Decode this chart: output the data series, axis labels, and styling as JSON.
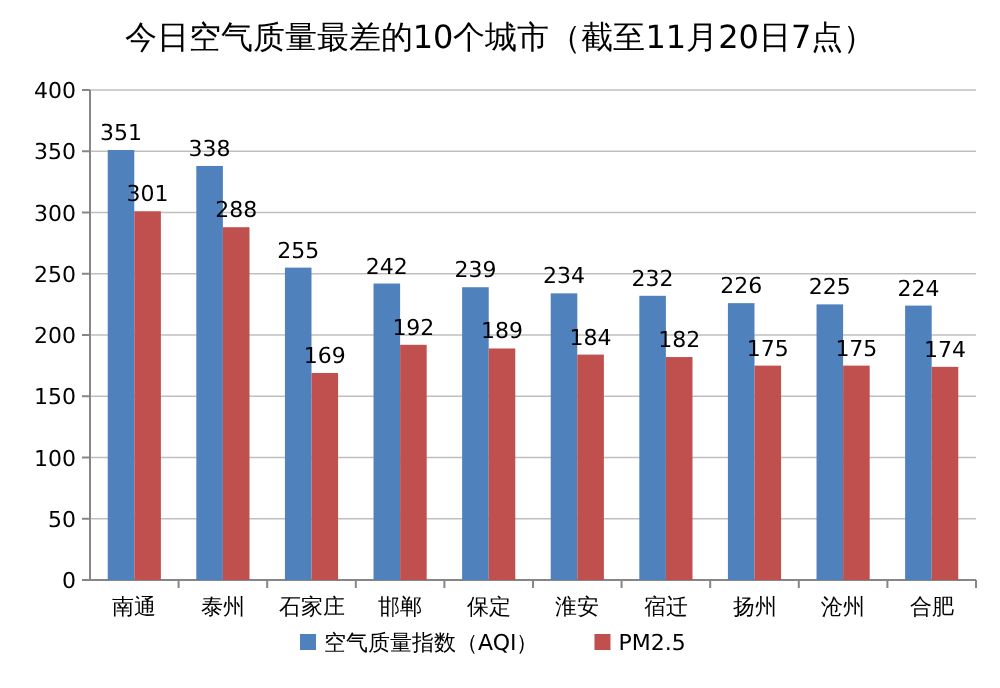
{
  "chart_data": {
    "type": "bar",
    "title": "今日空气质量最差的10个城市（截至11月20日7点）",
    "categories": [
      "南通",
      "泰州",
      "石家庄",
      "邯郸",
      "保定",
      "淮安",
      "宿迁",
      "扬州",
      "沧州",
      "合肥"
    ],
    "series": [
      {
        "name": "空气质量指数（AQI）",
        "color": "#4f81bd",
        "values": [
          351,
          338,
          255,
          242,
          239,
          234,
          232,
          226,
          225,
          224
        ]
      },
      {
        "name": "PM2.5",
        "color": "#c0504d",
        "values": [
          301,
          288,
          169,
          192,
          189,
          184,
          182,
          175,
          175,
          174
        ]
      }
    ],
    "ylim": [
      0,
      400
    ],
    "yticks": [
      0,
      50,
      100,
      150,
      200,
      250,
      300,
      350,
      400
    ],
    "grid": "y",
    "legend": "bottom",
    "data_labels": true
  }
}
